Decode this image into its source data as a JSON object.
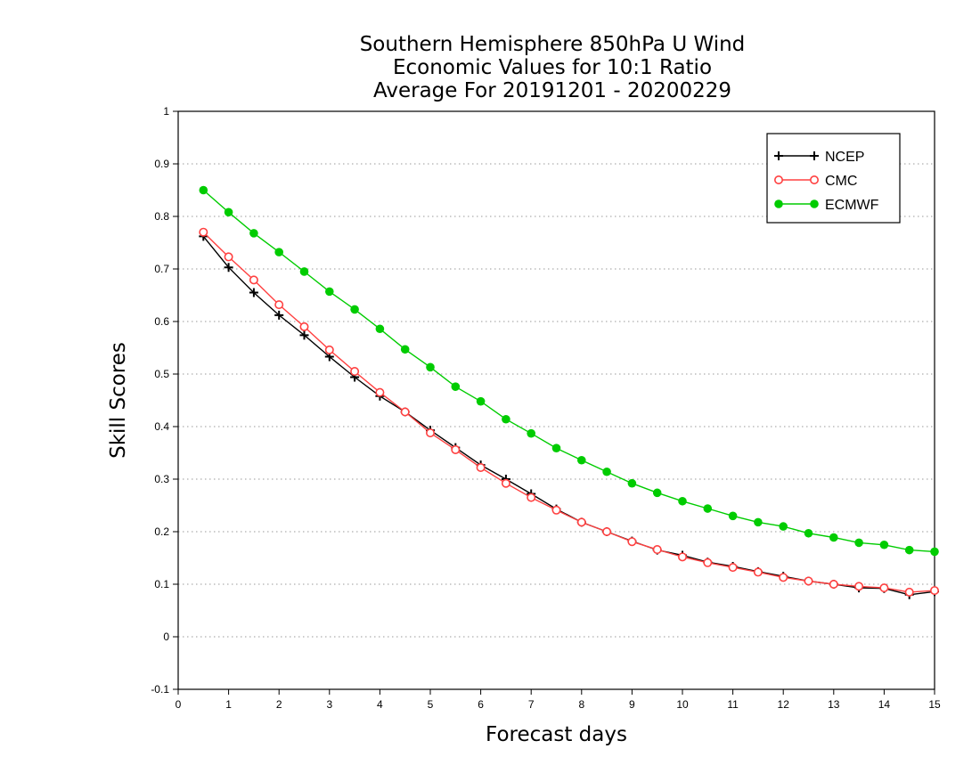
{
  "chart_data": {
    "type": "line",
    "title_lines": [
      "Southern Hemisphere 850hPa U Wind",
      "Economic Values for 10:1 Ratio",
      "Average For 20191201 - 20200229"
    ],
    "xlabel": "Forecast days",
    "ylabel": "Skill Scores",
    "xlim": [
      0,
      15
    ],
    "ylim": [
      -0.1,
      1
    ],
    "x_ticks": [
      0,
      1,
      2,
      3,
      4,
      5,
      6,
      7,
      8,
      9,
      10,
      11,
      12,
      13,
      14,
      15
    ],
    "x_tick_labels": [
      "0",
      "1",
      "2",
      "3",
      "4",
      "5",
      "6",
      "7",
      "8",
      "9",
      "10",
      "11",
      "12",
      "13",
      "14",
      "15"
    ],
    "y_ticks": [
      -0.1,
      0,
      0.1,
      0.2,
      0.3,
      0.4,
      0.5,
      0.6,
      0.7,
      0.8,
      0.9,
      1
    ],
    "y_tick_labels": [
      "-0.1",
      "0",
      "0.1",
      "0.2",
      "0.3",
      "0.4",
      "0.5",
      "0.6",
      "0.7",
      "0.8",
      "0.9",
      "1"
    ],
    "grid": true,
    "legend_position": "top-right",
    "x": [
      0.5,
      1,
      1.5,
      2,
      2.5,
      3,
      3.5,
      4,
      4.5,
      5,
      5.5,
      6,
      6.5,
      7,
      7.5,
      8,
      8.5,
      9,
      9.5,
      10,
      10.5,
      11,
      11.5,
      12,
      12.5,
      13,
      13.5,
      14,
      14.5,
      15
    ],
    "series": [
      {
        "name": "NCEP",
        "color": "#000000",
        "marker": "plus",
        "values": [
          0.762,
          0.703,
          0.655,
          0.612,
          0.574,
          0.533,
          0.494,
          0.458,
          0.428,
          0.393,
          0.36,
          0.327,
          0.3,
          0.272,
          0.243,
          0.218,
          0.2,
          0.182,
          0.165,
          0.155,
          0.142,
          0.134,
          0.124,
          0.115,
          0.106,
          0.1,
          0.093,
          0.092,
          0.08,
          0.086
        ]
      },
      {
        "name": "CMC",
        "color": "#ff4040",
        "marker": "open-circle",
        "values": [
          0.77,
          0.723,
          0.679,
          0.632,
          0.59,
          0.546,
          0.505,
          0.465,
          0.428,
          0.388,
          0.356,
          0.322,
          0.292,
          0.265,
          0.241,
          0.218,
          0.2,
          0.181,
          0.166,
          0.152,
          0.141,
          0.132,
          0.123,
          0.113,
          0.106,
          0.1,
          0.096,
          0.093,
          0.085,
          0.088
        ]
      },
      {
        "name": "ECMWF",
        "color": "#00cc00",
        "marker": "filled-circle",
        "values": [
          0.85,
          0.808,
          0.768,
          0.732,
          0.695,
          0.657,
          0.623,
          0.586,
          0.547,
          0.513,
          0.476,
          0.448,
          0.414,
          0.387,
          0.359,
          0.336,
          0.314,
          0.292,
          0.274,
          0.258,
          0.244,
          0.23,
          0.218,
          0.21,
          0.197,
          0.189,
          0.179,
          0.175,
          0.165,
          0.162
        ]
      }
    ]
  }
}
